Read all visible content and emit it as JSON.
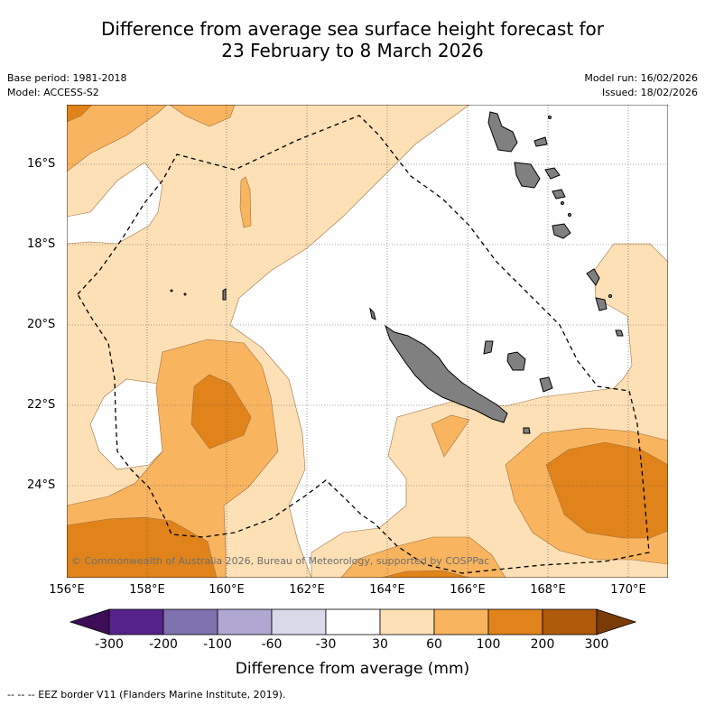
{
  "title": {
    "line1": "Difference from average sea surface height forecast for",
    "line2": "23 February to 8 March 2026"
  },
  "meta": {
    "base_period": "Base period: 1981-2018",
    "model": "Model: ACCESS-S2",
    "model_run": "Model run: 16/02/2026",
    "issued": "Issued: 18/02/2026"
  },
  "map": {
    "lon_labels": [
      "156°E",
      "158°E",
      "160°E",
      "162°E",
      "164°E",
      "166°E",
      "168°E",
      "170°E"
    ],
    "lat_labels": [
      "16°S",
      "18°S",
      "20°S",
      "22°S",
      "24°S"
    ],
    "copyright": "© Commonwealth of Australia 2026, Bureau of Meteorology, supported by COSPPac",
    "colors": {
      "ocean": "#ffffff",
      "anom_30_60": "#fde0b6",
      "anom_60_100": "#f8b45f",
      "anom_100_200": "#e0831a",
      "land": "#808080",
      "contour": "#a07040"
    }
  },
  "colorbar": {
    "labels": [
      "-300",
      "-200",
      "-100",
      "-60",
      "-30",
      "30",
      "60",
      "100",
      "200",
      "300"
    ],
    "colors": [
      "#3d0e57",
      "#56238c",
      "#7f72ae",
      "#b0a8d2",
      "#d9d9ea",
      "#ffffff",
      "#fde0b6",
      "#f8b45f",
      "#e0831a",
      "#b05a0c",
      "#7a3b07"
    ],
    "title": "Difference from average (mm)"
  },
  "footnote": "--  --  -- EEZ border V11 (Flanders Marine Institute, 2019)."
}
